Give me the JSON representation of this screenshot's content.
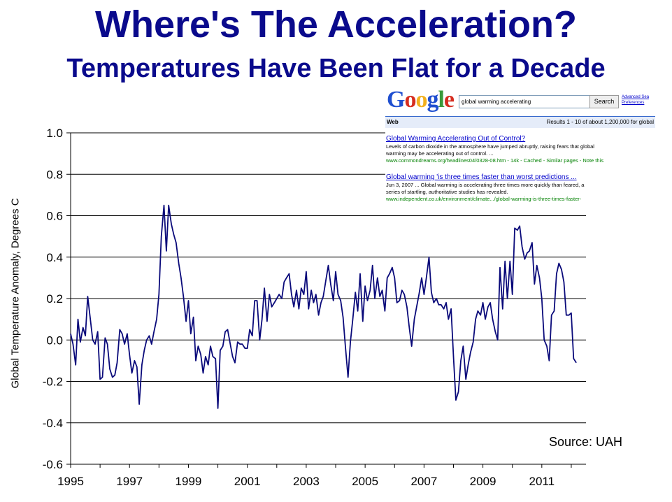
{
  "title": "Where's The Acceleration?",
  "subtitle": "Temperatures Have Been Flat for a Decade",
  "source_label": "Source:  UAH",
  "colors": {
    "title": "#0a0a8c",
    "series": "#0a0a7a",
    "gridline": "#000000"
  },
  "google_inset": {
    "query": "global warming accelerating",
    "search_button": "Search",
    "advanced_search": "Advanced Sea",
    "preferences": "Preferences",
    "web_label": "Web",
    "results_text": "Results 1 - 10 of about 1,200,000 for global",
    "result1_title": "Global Warming Accelerating Out of Control?",
    "result1_snippet1": "Levels of carbon dioxide in the atmosphere have jumped abruptly, raising fears that global",
    "result1_snippet2": "warming may be accelerating out of control. ...",
    "result1_url": "www.commondreams.org/headlines04/0328-08.htm - 14k - Cached - Similar pages - Note this",
    "result2_title": "Global warming 'is three times faster than worst predictions ...",
    "result2_snippet1": "Jun 3, 2007 ... Global warming is accelerating three times more quickly than feared, a",
    "result2_snippet2": "series of startling, authoritative studies has revealed.",
    "result2_url": "www.independent.co.uk/environment/climate.../global-warming-is-three-times-faster-"
  },
  "chart_data": {
    "type": "line",
    "title": "Where's The Acceleration?",
    "subtitle": "Temperatures Have Been Flat for a Decade",
    "xlabel": "",
    "ylabel": "Global Temperature Anomaly, Degrees C",
    "xlim": [
      1995,
      2012.5
    ],
    "ylim": [
      -0.6,
      1.0
    ],
    "yticks": [
      "1.0",
      "0.8",
      "0.6",
      "0.4",
      "0.2",
      "0.0",
      "-0.2",
      "-0.4",
      "-0.6"
    ],
    "xticks": [
      "1995",
      "1997",
      "1999",
      "2001",
      "2003",
      "2005",
      "2007",
      "2009",
      "2011"
    ],
    "grid": true,
    "series": [
      {
        "x": [
          1995.0,
          1995.08,
          1995.17,
          1995.25,
          1995.33,
          1995.42,
          1995.5,
          1995.58,
          1995.67,
          1995.75,
          1995.83,
          1995.92,
          1996.0,
          1996.08,
          1996.17,
          1996.25,
          1996.33,
          1996.42,
          1996.5,
          1996.58,
          1996.67,
          1996.75,
          1996.83,
          1996.92,
          1997.0,
          1997.08,
          1997.17,
          1997.25,
          1997.33,
          1997.42,
          1997.5,
          1997.58,
          1997.67,
          1997.75,
          1997.83,
          1997.92,
          1998.0,
          1998.08,
          1998.17,
          1998.25,
          1998.33,
          1998.42,
          1998.5,
          1998.58,
          1998.67,
          1998.75,
          1998.83,
          1998.92,
          1999.0,
          1999.08,
          1999.17,
          1999.25,
          1999.33,
          1999.42,
          1999.5,
          1999.58,
          1999.67,
          1999.75,
          1999.83,
          1999.92,
          2000.0,
          2000.08,
          2000.17,
          2000.25,
          2000.33,
          2000.42,
          2000.5,
          2000.58,
          2000.67,
          2000.75,
          2000.83,
          2000.92,
          2001.0,
          2001.08,
          2001.17,
          2001.25,
          2001.33,
          2001.42,
          2001.5,
          2001.58,
          2001.67,
          2001.75,
          2001.83,
          2001.92,
          2002.0,
          2002.08,
          2002.17,
          2002.25,
          2002.33,
          2002.42,
          2002.5,
          2002.58,
          2002.67,
          2002.75,
          2002.83,
          2002.92,
          2003.0,
          2003.08,
          2003.17,
          2003.25,
          2003.33,
          2003.42,
          2003.5,
          2003.58,
          2003.67,
          2003.75,
          2003.83,
          2003.92,
          2004.0,
          2004.08,
          2004.17,
          2004.25,
          2004.33,
          2004.42,
          2004.5,
          2004.58,
          2004.67,
          2004.75,
          2004.83,
          2004.92,
          2005.0,
          2005.08,
          2005.17,
          2005.25,
          2005.33,
          2005.42,
          2005.5,
          2005.58,
          2005.67,
          2005.75,
          2005.83,
          2005.92,
          2006.0,
          2006.08,
          2006.17,
          2006.25,
          2006.33,
          2006.42,
          2006.5,
          2006.58,
          2006.67,
          2006.75,
          2006.83,
          2006.92,
          2007.0,
          2007.08,
          2007.17,
          2007.25,
          2007.33,
          2007.42,
          2007.5,
          2007.58,
          2007.67,
          2007.75,
          2007.83,
          2007.92,
          2008.0,
          2008.08,
          2008.17,
          2008.25,
          2008.33,
          2008.42,
          2008.5,
          2008.58,
          2008.67,
          2008.75,
          2008.83,
          2008.92,
          2009.0,
          2009.08,
          2009.17,
          2009.25,
          2009.33,
          2009.42,
          2009.5,
          2009.58,
          2009.67,
          2009.75,
          2009.83,
          2009.92,
          2010.0,
          2010.08,
          2010.17,
          2010.25,
          2010.33,
          2010.42,
          2010.5,
          2010.58,
          2010.67,
          2010.75,
          2010.83,
          2010.92,
          2011.0,
          2011.08,
          2011.17,
          2011.25,
          2011.33,
          2011.42,
          2011.5,
          2011.58,
          2011.67,
          2011.75,
          2011.83,
          2011.92,
          2012.0,
          2012.08,
          2012.17
        ],
        "values": [
          0.03,
          -0.02,
          -0.12,
          0.1,
          -0.01,
          0.06,
          0.02,
          0.21,
          0.1,
          0.0,
          -0.02,
          0.04,
          -0.19,
          -0.18,
          0.01,
          -0.02,
          -0.14,
          -0.18,
          -0.17,
          -0.11,
          0.05,
          0.03,
          -0.02,
          0.03,
          -0.07,
          -0.16,
          -0.1,
          -0.13,
          -0.31,
          -0.12,
          -0.05,
          0.0,
          0.02,
          -0.02,
          0.04,
          0.1,
          0.22,
          0.5,
          0.65,
          0.43,
          0.65,
          0.56,
          0.51,
          0.47,
          0.37,
          0.3,
          0.21,
          0.09,
          0.19,
          0.03,
          0.11,
          -0.1,
          -0.03,
          -0.07,
          -0.16,
          -0.08,
          -0.12,
          -0.03,
          -0.08,
          -0.09,
          -0.33,
          -0.05,
          -0.03,
          0.04,
          0.05,
          -0.02,
          -0.08,
          -0.11,
          -0.01,
          -0.02,
          -0.02,
          -0.04,
          -0.04,
          0.05,
          0.02,
          0.19,
          0.19,
          0.0,
          0.1,
          0.25,
          0.09,
          0.22,
          0.16,
          0.18,
          0.2,
          0.22,
          0.2,
          0.28,
          0.3,
          0.32,
          0.22,
          0.16,
          0.24,
          0.15,
          0.25,
          0.22,
          0.33,
          0.15,
          0.24,
          0.18,
          0.22,
          0.12,
          0.18,
          0.21,
          0.29,
          0.36,
          0.27,
          0.19,
          0.33,
          0.22,
          0.19,
          0.11,
          -0.03,
          -0.18,
          -0.01,
          0.1,
          0.23,
          0.14,
          0.32,
          0.09,
          0.26,
          0.19,
          0.24,
          0.36,
          0.2,
          0.3,
          0.21,
          0.24,
          0.14,
          0.3,
          0.32,
          0.35,
          0.3,
          0.18,
          0.19,
          0.24,
          0.22,
          0.16,
          0.06,
          -0.03,
          0.1,
          0.16,
          0.22,
          0.3,
          0.22,
          0.3,
          0.4,
          0.23,
          0.18,
          0.2,
          0.17,
          0.17,
          0.15,
          0.18,
          0.1,
          0.15,
          -0.08,
          -0.29,
          -0.25,
          -0.1,
          -0.03,
          -0.19,
          -0.12,
          -0.06,
          -0.01,
          0.1,
          0.14,
          0.12,
          0.18,
          0.1,
          0.16,
          0.18,
          0.1,
          0.04,
          0.0,
          0.35,
          0.15,
          0.38,
          0.2,
          0.38,
          0.22,
          0.54,
          0.53,
          0.55,
          0.45,
          0.39,
          0.42,
          0.43,
          0.47,
          0.27,
          0.36,
          0.3,
          0.2,
          0.0,
          -0.03,
          -0.1,
          0.12,
          0.14,
          0.32,
          0.37,
          0.34,
          0.28,
          0.12,
          0.12,
          0.13,
          -0.09,
          -0.11
        ]
      }
    ]
  }
}
